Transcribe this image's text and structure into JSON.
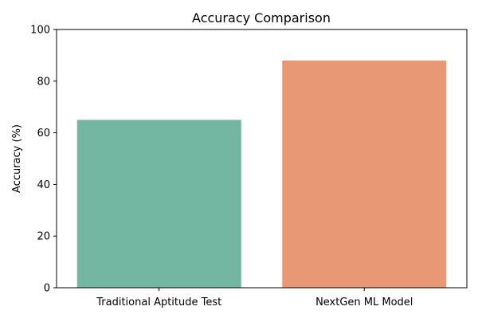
{
  "chart_data": {
    "type": "bar",
    "title": "Accuracy Comparison",
    "xlabel": "",
    "ylabel": "Accuracy (%)",
    "categories": [
      "Traditional Aptitude Test",
      "NextGen ML Model"
    ],
    "values": [
      65,
      88
    ],
    "colors": [
      "#73b6a1",
      "#e99875"
    ],
    "ylim": [
      0,
      100
    ],
    "yticks": [
      0,
      20,
      40,
      60,
      80,
      100
    ],
    "ytick_labels": [
      "0",
      "20",
      "40",
      "60",
      "80",
      "100"
    ],
    "grid": false,
    "legend": "none"
  }
}
